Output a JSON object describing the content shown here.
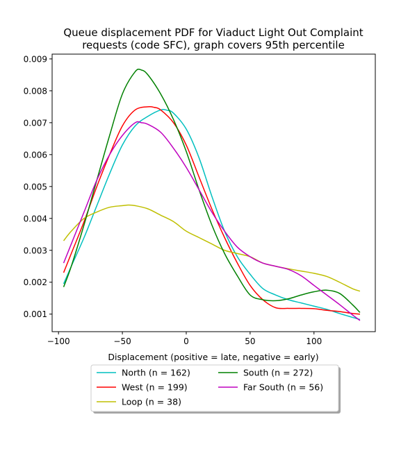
{
  "chart_data": {
    "type": "line",
    "title": "Queue displacement PDF for Viaduct Light Out Complaint requests (code SFC), graph covers 95th percentile",
    "title_lines": [
      "Queue displacement PDF for Viaduct Light Out Complaint",
      "requests (code SFC), graph covers 95th percentile"
    ],
    "xlabel": "Displacement (positive = late, negative = early)",
    "ylabel": "",
    "xlim": [
      -105,
      148
    ],
    "ylim": [
      0.00045,
      0.00915
    ],
    "xticks": [
      -100,
      -50,
      0,
      50,
      100
    ],
    "xtick_labels": [
      "−100",
      "−50",
      "0",
      "50",
      "100"
    ],
    "yticks": [
      0.001,
      0.002,
      0.003,
      0.004,
      0.005,
      0.006,
      0.007,
      0.008,
      0.009
    ],
    "ytick_labels": [
      "0.001",
      "0.002",
      "0.003",
      "0.004",
      "0.005",
      "0.006",
      "0.007",
      "0.008",
      "0.009"
    ],
    "grid": false,
    "legend_placement": "below",
    "series": [
      {
        "name": "North (n = 162)",
        "color": "#00bfbf",
        "x": [
          -96,
          -90,
          -80,
          -70,
          -60,
          -50,
          -40,
          -30,
          -20,
          -15,
          -10,
          0,
          10,
          20,
          30,
          40,
          50,
          60,
          70,
          80,
          90,
          100,
          110,
          120,
          130,
          136
        ],
        "y": [
          0.00195,
          0.0025,
          0.0034,
          0.0044,
          0.0054,
          0.0063,
          0.0069,
          0.0072,
          0.0074,
          0.00739,
          0.0073,
          0.0068,
          0.0059,
          0.0047,
          0.0036,
          0.0028,
          0.00225,
          0.0018,
          0.0016,
          0.00145,
          0.00135,
          0.00125,
          0.00115,
          0.00102,
          0.0009,
          0.00083
        ]
      },
      {
        "name": "West (n = 199)",
        "color": "#ff0000",
        "x": [
          -96,
          -90,
          -80,
          -70,
          -60,
          -50,
          -40,
          -30,
          -25,
          -20,
          -10,
          0,
          10,
          20,
          30,
          40,
          50,
          60,
          70,
          80,
          90,
          100,
          110,
          120,
          130,
          136
        ],
        "y": [
          0.0023,
          0.0029,
          0.0039,
          0.005,
          0.006,
          0.0069,
          0.0074,
          0.0075,
          0.00748,
          0.0074,
          0.007,
          0.0063,
          0.0053,
          0.0043,
          0.0034,
          0.0026,
          0.0019,
          0.00145,
          0.0012,
          0.00118,
          0.00118,
          0.00117,
          0.00112,
          0.00108,
          0.00102,
          0.001
        ]
      },
      {
        "name": "Loop (n = 38)",
        "color": "#bfbf00",
        "x": [
          -96,
          -90,
          -80,
          -70,
          -60,
          -50,
          -45,
          -40,
          -30,
          -20,
          -10,
          0,
          10,
          20,
          30,
          40,
          50,
          60,
          70,
          80,
          90,
          100,
          110,
          120,
          130,
          136
        ],
        "y": [
          0.0033,
          0.0036,
          0.004,
          0.0042,
          0.00435,
          0.0044,
          0.00442,
          0.0044,
          0.0043,
          0.0041,
          0.0039,
          0.0036,
          0.0034,
          0.0032,
          0.003,
          0.0029,
          0.0028,
          0.0026,
          0.0025,
          0.00242,
          0.00235,
          0.00228,
          0.00218,
          0.002,
          0.0018,
          0.00172
        ]
      },
      {
        "name": "South (n = 272)",
        "color": "#008000",
        "x": [
          -96,
          -90,
          -80,
          -70,
          -60,
          -50,
          -40,
          -35,
          -30,
          -20,
          -10,
          0,
          10,
          20,
          30,
          40,
          50,
          60,
          70,
          80,
          90,
          100,
          110,
          120,
          130,
          136
        ],
        "y": [
          0.00185,
          0.0025,
          0.0038,
          0.0052,
          0.0066,
          0.0079,
          0.0086,
          0.00865,
          0.0085,
          0.0079,
          0.0071,
          0.0061,
          0.0049,
          0.0038,
          0.0029,
          0.0022,
          0.0016,
          0.00145,
          0.00142,
          0.00148,
          0.0016,
          0.0017,
          0.00175,
          0.00165,
          0.0013,
          0.00105
        ]
      },
      {
        "name": "Far South (n = 56)",
        "color": "#bf00bf",
        "x": [
          -96,
          -90,
          -80,
          -70,
          -60,
          -50,
          -40,
          -35,
          -30,
          -20,
          -10,
          0,
          10,
          20,
          30,
          40,
          50,
          60,
          70,
          80,
          90,
          100,
          110,
          120,
          130,
          136
        ],
        "y": [
          0.0026,
          0.0032,
          0.0042,
          0.0052,
          0.006,
          0.0066,
          0.007,
          0.007,
          0.00695,
          0.0067,
          0.0062,
          0.0056,
          0.0049,
          0.0042,
          0.0036,
          0.0031,
          0.0028,
          0.0026,
          0.0025,
          0.0024,
          0.0022,
          0.0019,
          0.0016,
          0.0013,
          0.00098,
          0.0008
        ]
      }
    ],
    "legend_columns": [
      [
        "North (n = 162)",
        "West (n = 199)",
        "Loop (n = 38)"
      ],
      [
        "South (n = 272)",
        "Far South (n = 56)"
      ]
    ]
  }
}
